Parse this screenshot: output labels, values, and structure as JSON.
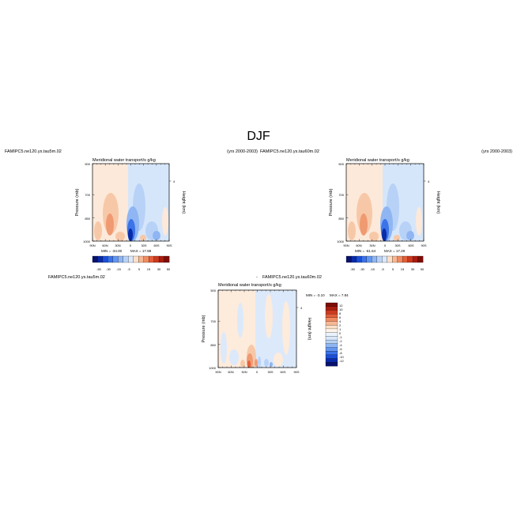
{
  "figure": {
    "title": "DJF"
  },
  "panels": [
    {
      "case_name": "FAMIPC5.ne120.ys.tau5m.02",
      "years": "(yrs 2000-2003)",
      "variable_title": "Meridional water transport/s g/kg",
      "min_label": "MIN = -34.00",
      "max_label": "MAX = 17.98"
    },
    {
      "case_name": "FAMIPC5.ne120.ys.tau60m.02",
      "years": "(yrs 2000-2003)",
      "variable_title": "Meridional water transport/s g/kg",
      "min_label": "MIN = -61.64",
      "max_label": "MAX = 17.29"
    },
    {
      "case_name": "FAMIPC5.ne120.ys.tau5m.02",
      "case_name_diff": "FAMIPC5.ne120.ys.tau60m.02",
      "diff_sep": "-",
      "variable_title": "Meridional water transport/s g/kg",
      "min_label": "MIN = -3.10",
      "max_label": "MAX = 7.84"
    }
  ],
  "axes": {
    "ylabel_left": "Pressure (mb)",
    "ylabel_right": "Height (km)",
    "pressure_ticks": [
      "500",
      "700",
      "850",
      "1000"
    ],
    "height_tick": "4",
    "lat_ticks": [
      "90N",
      "60N",
      "30N",
      "0",
      "30S",
      "60S",
      "90S"
    ]
  },
  "colorbar_horizontal": {
    "labels": [
      "-50",
      "-30",
      "-15",
      "-5",
      "5",
      "15",
      "30",
      "50"
    ],
    "colors": [
      "#08126e",
      "#0a2ba8",
      "#1c4fd6",
      "#3b73e8",
      "#6396ef",
      "#8fb6f3",
      "#b8d2f7",
      "#dbe8fb",
      "#fde0c8",
      "#f7b894",
      "#f08c63",
      "#e35f3a",
      "#cc3a20",
      "#a81d10",
      "#7d0d06"
    ]
  },
  "colorbar_vertical": {
    "labels": [
      "12",
      "10",
      "8",
      "6",
      "4",
      "2",
      "1",
      "0",
      "-1",
      "-2",
      "-4",
      "-6",
      "-8",
      "-10",
      "-12"
    ],
    "colors": [
      "#7d0d06",
      "#a81d10",
      "#cc3a20",
      "#e35f3a",
      "#f08c63",
      "#f7b894",
      "#fde0c8",
      "#fff4ea",
      "#eaf2fd",
      "#dbe8fb",
      "#b8d2f7",
      "#8fb6f3",
      "#6396ef",
      "#3b73e8",
      "#1c4fd6",
      "#0a2ba8",
      "#08126e"
    ]
  },
  "colors": {
    "warm_light": "#fde9d9",
    "cool_light": "#d6e6fa"
  }
}
